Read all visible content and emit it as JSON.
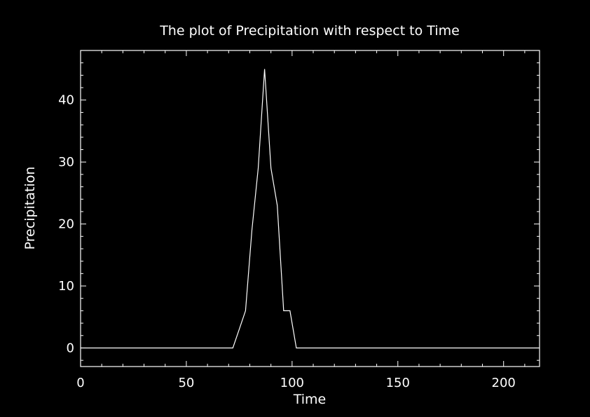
{
  "chart_data": {
    "type": "line",
    "title": "The plot of Precipitation with respect to Time",
    "xlabel": "Time",
    "ylabel": "Precipitation",
    "xlim": [
      0,
      217
    ],
    "ylim": [
      -3,
      48
    ],
    "xticks": [
      0,
      50,
      100,
      150,
      200
    ],
    "yticks": [
      0,
      10,
      20,
      30,
      40
    ],
    "grid": false,
    "background_color": "#000000",
    "line_color": "#ffffff",
    "series": [
      {
        "x": [
          0,
          72,
          75,
          78,
          81,
          84,
          87,
          90,
          93,
          96,
          99,
          102,
          105,
          217
        ],
        "y": [
          0,
          0,
          3,
          6,
          19,
          29,
          45,
          29,
          23,
          6,
          6,
          0,
          0,
          0
        ]
      }
    ]
  }
}
